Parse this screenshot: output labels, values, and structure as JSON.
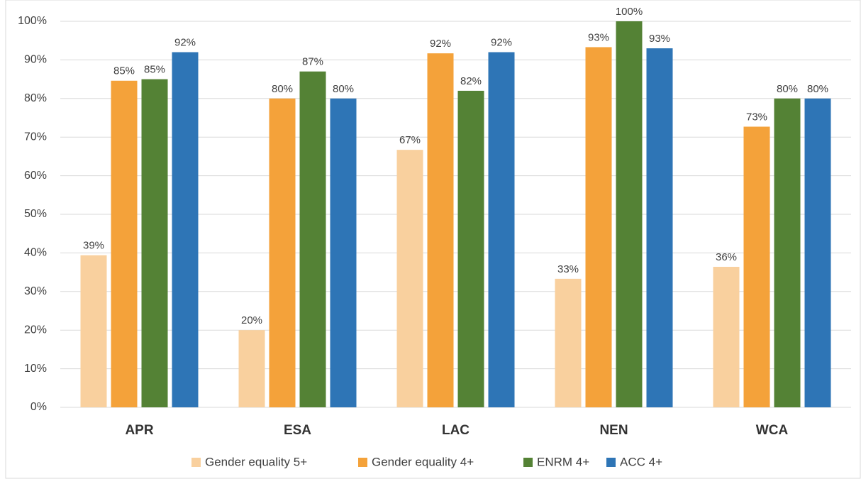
{
  "chart_data": {
    "type": "bar",
    "categories": [
      "APR",
      "ESA",
      "LAC",
      "NEN",
      "WCA"
    ],
    "series": [
      {
        "name": "Gender equality 5+",
        "color": "#f9d09e",
        "values": [
          39.4,
          20,
          66.7,
          33.3,
          36.4
        ],
        "value_labels": [
          "39%",
          "20%",
          "67%",
          "33%",
          "36%"
        ]
      },
      {
        "name": "Gender equality 4+",
        "color": "#f4a23a",
        "values": [
          84.6,
          80,
          91.7,
          93.3,
          72.7
        ],
        "value_labels": [
          "85%",
          "80%",
          "92%",
          "93%",
          "73%"
        ]
      },
      {
        "name": "ENRM 4+",
        "color": "#548235",
        "values": [
          85,
          87,
          82,
          100,
          80
        ],
        "value_labels": [
          "85%",
          "87%",
          "82%",
          "100%",
          "80%"
        ]
      },
      {
        "name": "ACC 4+",
        "color": "#2e75b6",
        "values": [
          92,
          80,
          92,
          93,
          80
        ],
        "value_labels": [
          "92%",
          "80%",
          "92%",
          "93%",
          "80%"
        ]
      }
    ],
    "ylim": [
      0,
      100
    ],
    "yticks": [
      {
        "value": 0,
        "label": "0%"
      },
      {
        "value": 10,
        "label": "10%"
      },
      {
        "value": 20,
        "label": "20%"
      },
      {
        "value": 30,
        "label": "30%"
      },
      {
        "value": 40,
        "label": "40%"
      },
      {
        "value": 50,
        "label": "50%"
      },
      {
        "value": 60,
        "label": "60%"
      },
      {
        "value": 70,
        "label": "70%"
      },
      {
        "value": 80,
        "label": "80%"
      },
      {
        "value": 90,
        "label": "90%"
      },
      {
        "value": 100,
        "label": "100%"
      }
    ],
    "grid": true,
    "legend": "bottom"
  }
}
